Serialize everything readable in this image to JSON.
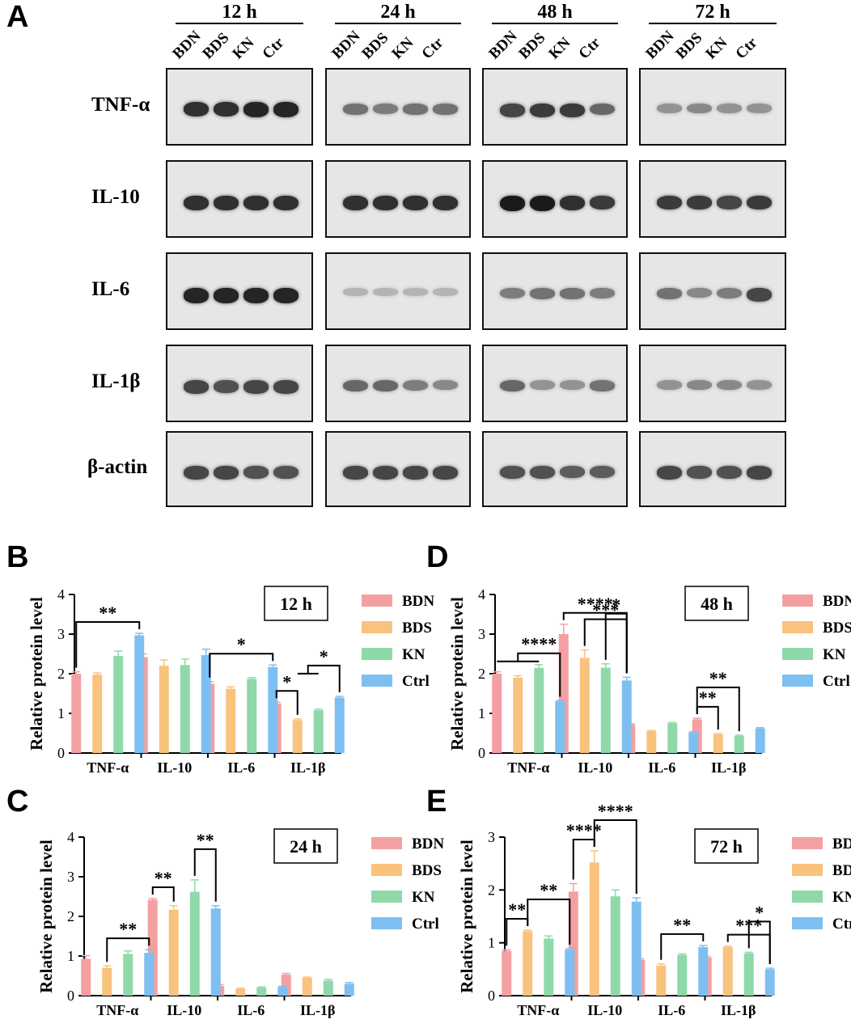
{
  "panel_letters": [
    "A",
    "B",
    "C",
    "D",
    "E"
  ],
  "western_blot": {
    "time_points": [
      "12 h",
      "24 h",
      "48 h",
      "72 h"
    ],
    "lane_labels": [
      "BDN",
      "BDS",
      "KN",
      "Ctr"
    ],
    "proteins": [
      "TNF-α",
      "IL-10",
      "IL-6",
      "IL-1β",
      "β-actin"
    ],
    "band_intensity": [
      [
        [
          0.85,
          0.85,
          0.9,
          0.9
        ],
        [
          0.55,
          0.5,
          0.55,
          0.55
        ],
        [
          0.75,
          0.8,
          0.8,
          0.6
        ],
        [
          0.4,
          0.45,
          0.4,
          0.4
        ]
      ],
      [
        [
          0.85,
          0.85,
          0.85,
          0.85
        ],
        [
          0.85,
          0.85,
          0.85,
          0.85
        ],
        [
          0.95,
          0.95,
          0.85,
          0.8
        ],
        [
          0.8,
          0.8,
          0.75,
          0.8
        ]
      ],
      [
        [
          0.9,
          0.9,
          0.9,
          0.9
        ],
        [
          0.25,
          0.25,
          0.25,
          0.25
        ],
        [
          0.5,
          0.55,
          0.55,
          0.5
        ],
        [
          0.55,
          0.45,
          0.5,
          0.75
        ]
      ],
      [
        [
          0.75,
          0.7,
          0.75,
          0.75
        ],
        [
          0.6,
          0.6,
          0.5,
          0.45
        ],
        [
          0.6,
          0.4,
          0.4,
          0.55
        ],
        [
          0.4,
          0.45,
          0.45,
          0.4
        ]
      ],
      [
        [
          0.75,
          0.75,
          0.7,
          0.7
        ],
        [
          0.75,
          0.75,
          0.75,
          0.75
        ],
        [
          0.7,
          0.7,
          0.65,
          0.65
        ],
        [
          0.75,
          0.7,
          0.7,
          0.75
        ]
      ]
    ]
  },
  "colors": {
    "BDN": "#f4a0a3",
    "BDS": "#f9c27d",
    "KN": "#8fd9a9",
    "Ctrl": "#7ebff2"
  },
  "chart_data": [
    {
      "panel": "B",
      "type": "bar",
      "title": "12 h",
      "ylabel": "Relative protein level",
      "xlabel": "",
      "categories": [
        "TNF-α",
        "IL-10",
        "IL-6",
        "IL-1β"
      ],
      "ylim": [
        0,
        4
      ],
      "yticks": [
        0,
        1,
        2,
        3,
        4
      ],
      "legend": [
        "BDN",
        "BDS",
        "KN",
        "Ctrl"
      ],
      "legend_position": "right",
      "series": [
        {
          "name": "BDN",
          "values": [
            2.0,
            2.42,
            1.75,
            1.25
          ],
          "errors": [
            0.05,
            0.08,
            0.05,
            0.03
          ]
        },
        {
          "name": "BDS",
          "values": [
            1.98,
            2.2,
            1.62,
            0.83
          ],
          "errors": [
            0.04,
            0.15,
            0.05,
            0.03
          ]
        },
        {
          "name": "KN",
          "values": [
            2.45,
            2.22,
            1.87,
            1.08
          ],
          "errors": [
            0.12,
            0.15,
            0.03,
            0.03
          ]
        },
        {
          "name": "Ctrl",
          "values": [
            2.97,
            2.47,
            2.17,
            1.4
          ],
          "errors": [
            0.05,
            0.15,
            0.05,
            0.03
          ]
        }
      ],
      "significance": [
        {
          "label": "**",
          "category": 0,
          "from": [
            0
          ],
          "to": 3
        },
        {
          "label": "*",
          "category": 2,
          "from": [
            0
          ],
          "to": 3
        },
        {
          "label": "*",
          "category": 3,
          "from": [
            0
          ],
          "to": 1
        },
        {
          "label": "*",
          "category": 3,
          "from": [
            1,
            2
          ],
          "to": 3
        }
      ]
    },
    {
      "panel": "C",
      "type": "bar",
      "title": "24 h",
      "ylabel": "Relative protein level",
      "xlabel": "",
      "categories": [
        "TNF-α",
        "IL-10",
        "IL-6",
        "IL-1β"
      ],
      "ylim": [
        0,
        4
      ],
      "yticks": [
        0,
        1,
        2,
        3,
        4
      ],
      "legend": [
        "BDN",
        "BDS",
        "KN",
        "Ctrl"
      ],
      "legend_position": "right",
      "series": [
        {
          "name": "BDN",
          "values": [
            0.93,
            2.42,
            0.25,
            0.53
          ],
          "errors": [
            0.08,
            0.03,
            0.03,
            0.03
          ]
        },
        {
          "name": "BDS",
          "values": [
            0.7,
            2.17,
            0.17,
            0.45
          ],
          "errors": [
            0.05,
            0.1,
            0.02,
            0.02
          ]
        },
        {
          "name": "KN",
          "values": [
            1.05,
            2.62,
            0.2,
            0.38
          ],
          "errors": [
            0.08,
            0.3,
            0.02,
            0.03
          ]
        },
        {
          "name": "Ctrl",
          "values": [
            1.08,
            2.2,
            0.22,
            0.3
          ],
          "errors": [
            0.08,
            0.07,
            0.02,
            0.03
          ]
        }
      ],
      "significance": [
        {
          "label": "**",
          "category": 0,
          "from": [
            1
          ],
          "to": 3
        },
        {
          "label": "**",
          "category": 1,
          "from": [
            0
          ],
          "to": 1
        },
        {
          "label": "**",
          "category": 1,
          "from": [
            2
          ],
          "to": 3
        }
      ]
    },
    {
      "panel": "D",
      "type": "bar",
      "title": "48 h",
      "ylabel": "Relative protein level",
      "xlabel": "",
      "categories": [
        "TNF-α",
        "IL-10",
        "IL-6",
        "IL-1β"
      ],
      "ylim": [
        0,
        4
      ],
      "yticks": [
        0,
        1,
        2,
        3,
        4
      ],
      "legend": [
        "BDN",
        "BDS",
        "KN",
        "Ctrl"
      ],
      "legend_position": "right",
      "series": [
        {
          "name": "BDN",
          "values": [
            2.0,
            3.0,
            0.72,
            0.85
          ],
          "errors": [
            0.05,
            0.25,
            0.02,
            0.03
          ]
        },
        {
          "name": "BDS",
          "values": [
            1.9,
            2.4,
            0.55,
            0.47
          ],
          "errors": [
            0.05,
            0.2,
            0.02,
            0.02
          ]
        },
        {
          "name": "KN",
          "values": [
            2.15,
            2.15,
            0.75,
            0.43
          ],
          "errors": [
            0.08,
            0.1,
            0.02,
            0.02
          ]
        },
        {
          "name": "Ctrl",
          "values": [
            1.3,
            1.83,
            0.52,
            0.62
          ],
          "errors": [
            0.02,
            0.08,
            0.02,
            0.02
          ]
        }
      ],
      "significance": [
        {
          "label": "****",
          "category": 0,
          "from": [
            0,
            1,
            2
          ],
          "to": 3
        },
        {
          "label": "****",
          "category": 1,
          "from": [
            0
          ],
          "to": 3
        },
        {
          "label": "***",
          "category": 1,
          "from": [
            1
          ],
          "to": 3
        },
        {
          "label": "*",
          "category": 1,
          "from": [
            2
          ],
          "to": 3
        },
        {
          "label": "**",
          "category": 3,
          "from": [
            0
          ],
          "to": 1
        },
        {
          "label": "**",
          "category": 3,
          "from": [
            0
          ],
          "to": 2
        }
      ]
    },
    {
      "panel": "E",
      "type": "bar",
      "title": "72 h",
      "ylabel": "Relative protein level",
      "xlabel": "",
      "categories": [
        "TNF-α",
        "IL-10",
        "IL-6",
        "IL-1β"
      ],
      "ylim": [
        0,
        3
      ],
      "yticks": [
        0,
        1,
        2,
        3
      ],
      "legend": [
        "BDN",
        "BDS",
        "KN",
        "Ctrl"
      ],
      "legend_position": "right",
      "series": [
        {
          "name": "BDN",
          "values": [
            0.85,
            1.97,
            0.68,
            0.72
          ],
          "errors": [
            0.02,
            0.15,
            0.02,
            0.02
          ]
        },
        {
          "name": "BDS",
          "values": [
            1.22,
            2.52,
            0.57,
            0.92
          ],
          "errors": [
            0.02,
            0.22,
            0.03,
            0.02
          ]
        },
        {
          "name": "KN",
          "values": [
            1.08,
            1.88,
            0.77,
            0.8
          ],
          "errors": [
            0.05,
            0.12,
            0.02,
            0.02
          ]
        },
        {
          "name": "Ctrl",
          "values": [
            0.87,
            1.78,
            0.92,
            0.5
          ],
          "errors": [
            0.02,
            0.07,
            0.03,
            0.02
          ]
        }
      ],
      "significance": [
        {
          "label": "**",
          "category": 0,
          "from": [
            0
          ],
          "to": 1
        },
        {
          "label": "**",
          "category": 0,
          "from": [
            1
          ],
          "to": 3
        },
        {
          "label": "****",
          "category": 1,
          "from": [
            0
          ],
          "to": 1
        },
        {
          "label": "****",
          "category": 1,
          "from": [
            1
          ],
          "to": 3
        },
        {
          "label": "**",
          "category": 2,
          "from": [
            1
          ],
          "to": 3
        },
        {
          "label": "***",
          "category": 3,
          "from": [
            1
          ],
          "to": 3
        },
        {
          "label": "*",
          "category": 3,
          "from": [
            2
          ],
          "to": 3
        }
      ]
    }
  ]
}
